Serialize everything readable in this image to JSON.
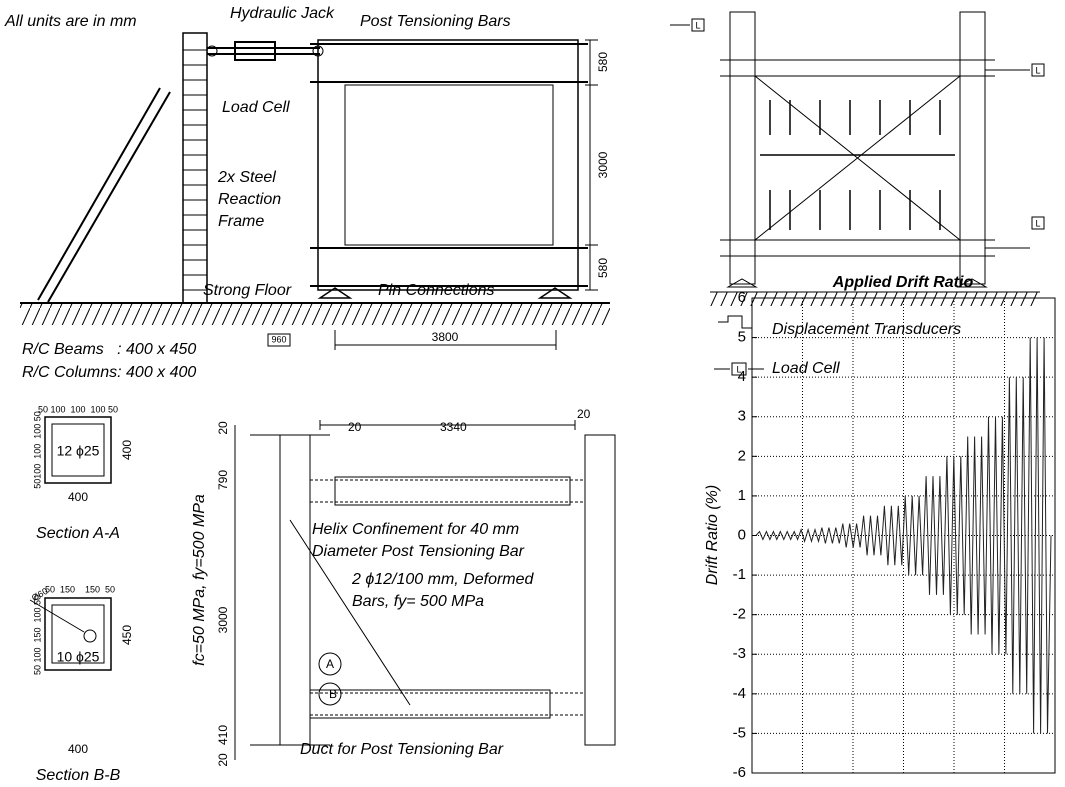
{
  "top_left": {
    "note": "All units are in mm",
    "labels": {
      "hydraulic_jack": "Hydraulic Jack",
      "post_tensioning_bars": "Post Tensioning Bars",
      "load_cell": "Load Cell",
      "reaction_frame": [
        "2x Steel",
        "Reaction",
        "Frame"
      ],
      "strong_floor": "Strong Floor",
      "pin_connections": "Pin Connections"
    },
    "dims": {
      "top": "580",
      "middle": "3000",
      "bottom": "580",
      "span": "3800",
      "small": "960"
    },
    "beams": "R/C Beams   : 400 x 450",
    "columns": "R/C Columns: 400 x 400"
  },
  "top_right": {
    "load_cell_tag": "L",
    "legend": {
      "transducers": "Displacement Transducers",
      "load_cell": "Load Cell"
    }
  },
  "sections": [
    {
      "title": "Section A-A",
      "top_dims": "50 100  100  100 50",
      "side_dims": "50100  100  100 50",
      "width": "400",
      "height": "400",
      "bars": "12 ϕ25"
    },
    {
      "title": "Section B-B",
      "top_dims": "50  150    150  50",
      "side_dims": "50 100  150  100 50",
      "width": "400",
      "height": "450",
      "bars": "10 ϕ25",
      "duct": "Ø60"
    }
  ],
  "elevation": {
    "dims": {
      "left_gap": "20",
      "length": "3340",
      "right_gap": "20",
      "top_gap": "20",
      "top": "790",
      "middle": "3000",
      "bottom": "410",
      "base": "20"
    },
    "materials": "fc=50 MPa, fy=500 MPa",
    "helix": [
      "Helix Confinement for 40 mm",
      "Diameter Post Tensioning Bar"
    ],
    "rebar": [
      "2 ϕ12/100 mm, Deformed",
      "Bars, fy= 500 MPa"
    ],
    "section_marks": [
      "A",
      "B"
    ],
    "duct": "Duct for Post Tensioning Bar"
  },
  "chart_data": {
    "type": "line",
    "title": "Applied Drift Ratio",
    "y_label": "Drift Ratio (%)",
    "color": "#222222",
    "ylim": [
      -6,
      6
    ],
    "yticks": [
      -6,
      -5,
      -4,
      -3,
      -2,
      -1,
      0,
      1,
      2,
      3,
      4,
      5,
      6
    ],
    "grid": true,
    "values": [
      0,
      0.1,
      -0.1,
      0.1,
      -0.1,
      0.1,
      -0.1,
      0.1,
      -0.1,
      0.1,
      -0.1,
      0.1,
      -0.1,
      0.15,
      -0.15,
      0.15,
      -0.15,
      0.15,
      -0.15,
      0.2,
      -0.2,
      0.2,
      -0.2,
      0.2,
      -0.2,
      0.3,
      -0.3,
      0.3,
      -0.3,
      0.3,
      -0.3,
      0.5,
      -0.5,
      0.5,
      -0.5,
      0.5,
      -0.5,
      0.75,
      -0.75,
      0.75,
      -0.75,
      0.75,
      -0.75,
      1,
      -1,
      1,
      -1,
      1,
      -1,
      1.5,
      -1.5,
      1.5,
      -1.5,
      1.5,
      -1.5,
      2,
      -2,
      2,
      -2,
      2,
      -2,
      2.5,
      -2.5,
      2.5,
      -2.5,
      2.5,
      -2.5,
      3,
      -3,
      3,
      -3,
      3,
      -3,
      4,
      -4,
      4,
      -4,
      4,
      -4,
      5,
      -5,
      5,
      -5,
      5,
      -5,
      0
    ]
  }
}
